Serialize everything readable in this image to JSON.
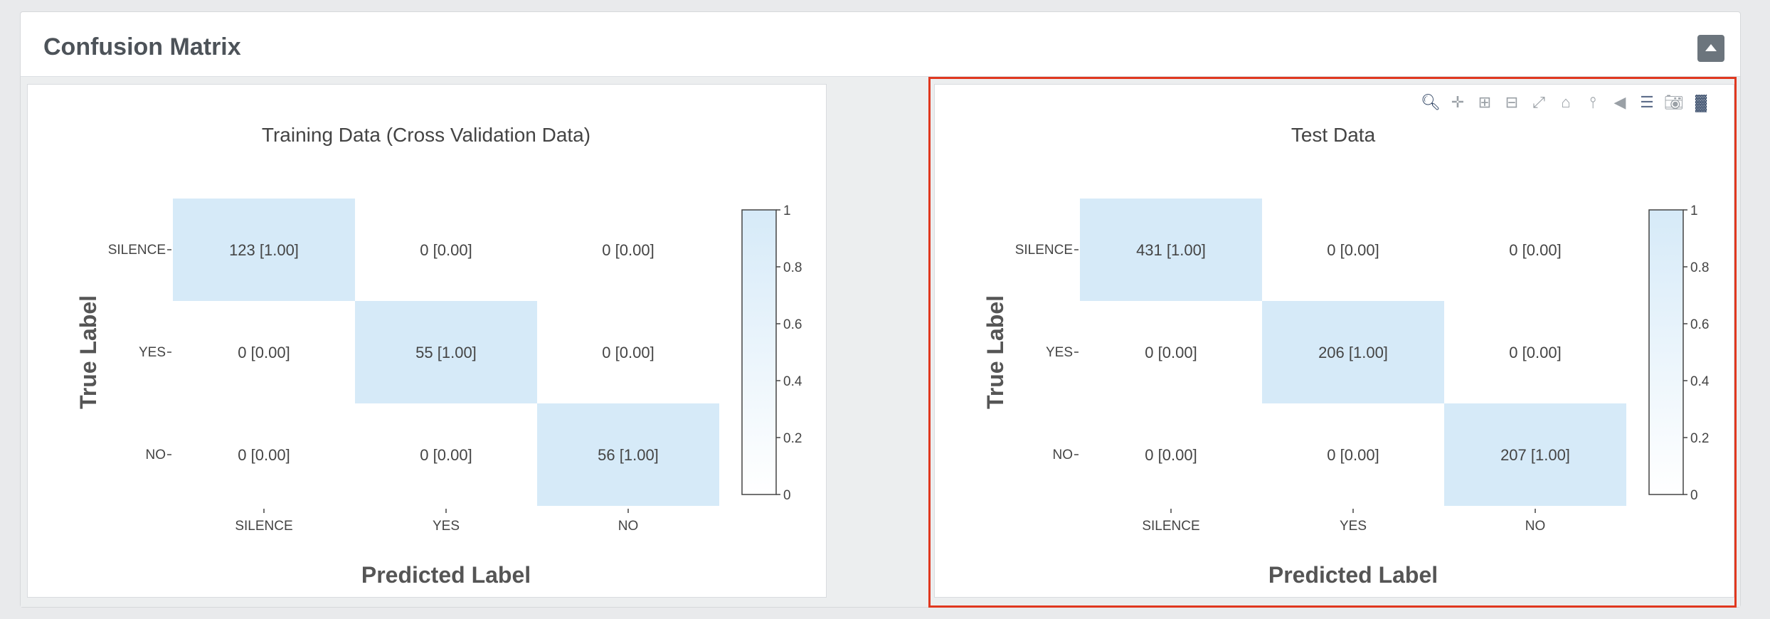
{
  "panel": {
    "title": "Confusion Matrix"
  },
  "toolbar": {
    "icons": [
      "zoom-icon",
      "pan-icon",
      "zoom-in-icon",
      "zoom-out-icon",
      "autoscale-icon",
      "reset-axes-icon",
      "spike-lines-icon",
      "hover-closest-icon",
      "hover-compare-icon",
      "camera-icon",
      "plotly-logo-icon"
    ]
  },
  "colors": {
    "accent": "#e0381f",
    "cell_full": "#d6eaf8",
    "cell_zero": "#ffffff",
    "axis_text": "#444444",
    "axis_title": "#555555"
  },
  "chart_data": [
    {
      "type": "heatmap",
      "title": "Training Data (Cross Validation Data)",
      "xlabel": "Predicted Label",
      "ylabel": "True Label",
      "x_categories": [
        "SILENCE",
        "YES",
        "NO"
      ],
      "y_categories": [
        "SILENCE",
        "YES",
        "NO"
      ],
      "counts": [
        [
          123,
          0,
          0
        ],
        [
          0,
          55,
          0
        ],
        [
          0,
          0,
          56
        ]
      ],
      "normalized": [
        [
          "1.00",
          "0.00",
          "0.00"
        ],
        [
          "0.00",
          "1.00",
          "0.00"
        ],
        [
          "0.00",
          "0.00",
          "1.00"
        ]
      ],
      "colorbar": {
        "range": [
          0,
          1
        ],
        "ticks": [
          "0",
          "0.2",
          "0.4",
          "0.6",
          "0.8",
          "1"
        ]
      }
    },
    {
      "type": "heatmap",
      "title": "Test Data",
      "xlabel": "Predicted Label",
      "ylabel": "True Label",
      "x_categories": [
        "SILENCE",
        "YES",
        "NO"
      ],
      "y_categories": [
        "SILENCE",
        "YES",
        "NO"
      ],
      "counts": [
        [
          431,
          0,
          0
        ],
        [
          0,
          206,
          0
        ],
        [
          0,
          0,
          207
        ]
      ],
      "normalized": [
        [
          "1.00",
          "0.00",
          "0.00"
        ],
        [
          "0.00",
          "1.00",
          "0.00"
        ],
        [
          "0.00",
          "0.00",
          "1.00"
        ]
      ],
      "colorbar": {
        "range": [
          0,
          1
        ],
        "ticks": [
          "0",
          "0.2",
          "0.4",
          "0.6",
          "0.8",
          "1"
        ]
      }
    }
  ]
}
